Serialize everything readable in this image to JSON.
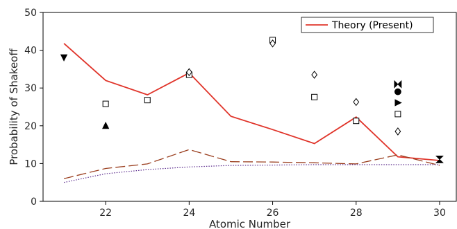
{
  "chart_data": {
    "type": "line",
    "title": "",
    "xlabel": "Atomic Number",
    "ylabel": "Probability of Shakeoff",
    "xlim": [
      20.5,
      30.4
    ],
    "ylim": [
      0,
      50
    ],
    "x_ticks": [
      22,
      24,
      26,
      28,
      30
    ],
    "y_ticks": [
      0,
      10,
      20,
      30,
      40,
      50
    ],
    "grid": false,
    "legend": {
      "placement": "top-right",
      "entries": [
        "Theory (Present)"
      ]
    },
    "series": [
      {
        "name": "Theory (Present)",
        "style": "solid",
        "color": "#e0342a",
        "x": [
          21,
          22,
          23,
          24,
          25,
          26,
          27,
          28,
          29,
          30
        ],
        "y": [
          41.8,
          32.0,
          28.2,
          34.0,
          22.5,
          19.0,
          15.3,
          22.3,
          11.8,
          10.8
        ]
      },
      {
        "style": "dashed",
        "color": "#9a3e1e",
        "x": [
          21,
          22,
          23,
          24,
          25,
          26,
          27,
          28,
          29,
          30
        ],
        "y": [
          6.0,
          8.7,
          9.9,
          13.7,
          10.5,
          10.4,
          10.2,
          9.9,
          12.3,
          9.5
        ]
      },
      {
        "style": "dotted",
        "color": "#5a2a8c",
        "x": [
          21,
          22,
          23,
          24,
          25,
          26,
          27,
          28,
          29,
          30
        ],
        "y": [
          5.0,
          7.3,
          8.4,
          9.1,
          9.5,
          9.6,
          9.7,
          9.7,
          9.7,
          9.7
        ]
      }
    ],
    "markers": [
      {
        "shape": "triangle-down",
        "fill": "black",
        "points": [
          [
            21,
            38.1
          ]
        ]
      },
      {
        "shape": "triangle-up",
        "fill": "black",
        "points": [
          [
            22,
            20.0
          ]
        ]
      },
      {
        "shape": "square",
        "fill": "none",
        "points": [
          [
            22,
            25.8
          ],
          [
            23,
            26.8
          ],
          [
            24,
            33.5
          ],
          [
            26,
            42.7
          ],
          [
            27,
            27.6
          ],
          [
            28,
            21.3
          ],
          [
            29,
            23.1
          ]
        ]
      },
      {
        "shape": "diamond",
        "fill": "none",
        "points": [
          [
            24,
            34.2
          ],
          [
            26,
            41.8
          ],
          [
            27,
            33.5
          ],
          [
            28,
            26.3
          ],
          [
            29,
            18.5
          ]
        ]
      },
      {
        "shape": "bowtie",
        "fill": "black",
        "points": [
          [
            29,
            31.0
          ]
        ]
      },
      {
        "shape": "circle",
        "fill": "black",
        "points": [
          [
            29,
            29.0
          ]
        ]
      },
      {
        "shape": "triangle-right",
        "fill": "black",
        "points": [
          [
            29,
            26.1
          ]
        ]
      },
      {
        "shape": "hourglass",
        "fill": "black",
        "points": [
          [
            30,
            11.1
          ]
        ]
      }
    ]
  }
}
